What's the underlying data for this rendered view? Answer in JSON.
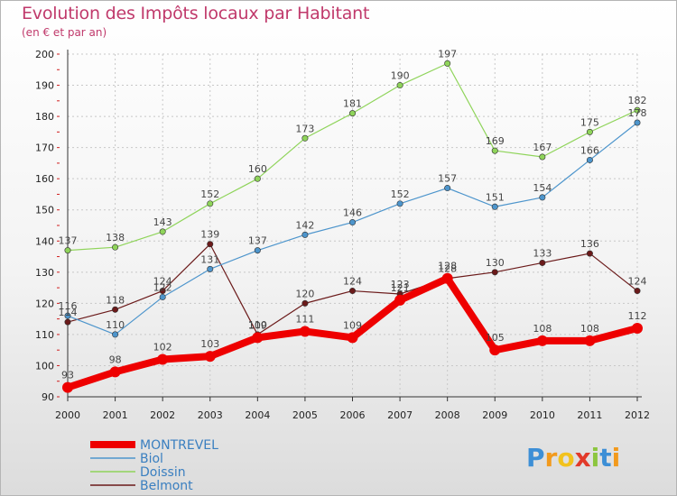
{
  "header": {
    "title": "Evolution des Impôts locaux par Habitant",
    "subtitle": "(en € et par an)"
  },
  "logo": {
    "text": "Proxiti",
    "letters": [
      "P",
      "r",
      "o",
      "x",
      "i",
      "t",
      "i"
    ]
  },
  "chart_data": {
    "type": "line",
    "title": "Evolution des Impôts locaux par Habitant",
    "subtitle": "(en € et par an)",
    "x": [
      2000,
      2001,
      2002,
      2003,
      2004,
      2005,
      2006,
      2007,
      2008,
      2009,
      2010,
      2011,
      2012
    ],
    "ylim": [
      90,
      200
    ],
    "yticks": [
      90,
      100,
      110,
      120,
      130,
      140,
      150,
      160,
      170,
      180,
      190,
      200
    ],
    "grid": true,
    "legend_position": "bottom-left",
    "series": [
      {
        "name": "Belmont",
        "color": "#6b1a1a",
        "values": [
          114,
          118,
          124,
          139,
          110,
          120,
          124,
          123,
          128,
          130,
          133,
          136,
          124
        ]
      },
      {
        "name": "Doissin",
        "color": "#8fd45a",
        "values": [
          137,
          138,
          143,
          152,
          160,
          173,
          181,
          190,
          197,
          169,
          167,
          175,
          182
        ]
      },
      {
        "name": "Biol",
        "color": "#4d95cc",
        "values": [
          116,
          110,
          122,
          131,
          137,
          142,
          146,
          152,
          157,
          151,
          154,
          166,
          178
        ]
      },
      {
        "name": "MONTREVEL",
        "color": "#ee0000",
        "values": [
          93,
          98,
          102,
          103,
          109,
          111,
          109,
          121,
          128,
          105,
          108,
          108,
          112
        ]
      }
    ]
  }
}
